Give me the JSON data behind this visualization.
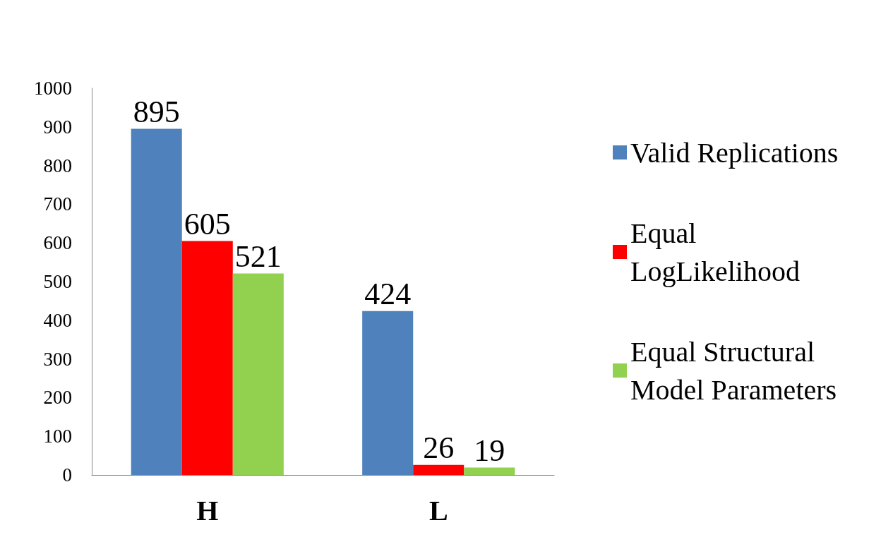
{
  "chart_data": {
    "type": "bar",
    "categories": [
      "H",
      "L"
    ],
    "series": [
      {
        "name": "Valid Replications",
        "color": "#4f81bd",
        "values": [
          895,
          424
        ]
      },
      {
        "name": "Equal LogLikelihood",
        "color": "#ff0000",
        "values": [
          605,
          26
        ]
      },
      {
        "name": "Equal Structural Model Parameters",
        "color": "#92d050",
        "values": [
          521,
          19
        ]
      }
    ],
    "ylim": [
      0,
      1000
    ],
    "yticks": [
      0,
      100,
      200,
      300,
      400,
      500,
      600,
      700,
      800,
      900,
      1000
    ],
    "data_labels": true,
    "grid": false,
    "legend": "right"
  }
}
